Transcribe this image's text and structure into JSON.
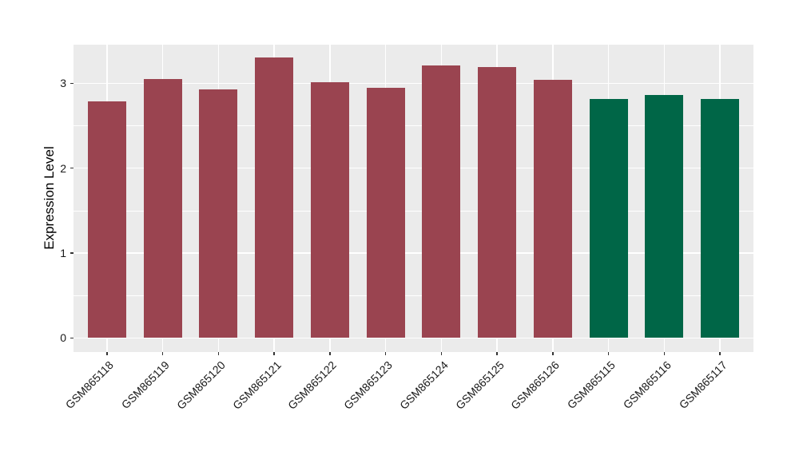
{
  "chart_data": {
    "type": "bar",
    "title": "",
    "xlabel": "",
    "ylabel": "Expression Level",
    "categories": [
      "GSM865118",
      "GSM865119",
      "GSM865120",
      "GSM865121",
      "GSM865122",
      "GSM865123",
      "GSM865124",
      "GSM865125",
      "GSM865126",
      "GSM865115",
      "GSM865116",
      "GSM865117"
    ],
    "values": [
      2.79,
      3.05,
      2.93,
      3.3,
      3.01,
      2.95,
      3.21,
      3.19,
      3.04,
      2.82,
      2.86,
      2.82
    ],
    "bar_colors": [
      "#9A4450",
      "#9A4450",
      "#9A4450",
      "#9A4450",
      "#9A4450",
      "#9A4450",
      "#9A4450",
      "#9A4450",
      "#9A4450",
      "#006647",
      "#006647",
      "#006647"
    ],
    "groups": [
      {
        "name": "group-red",
        "color": "#9A4450",
        "members": [
          "GSM865118",
          "GSM865119",
          "GSM865120",
          "GSM865121",
          "GSM865122",
          "GSM865123",
          "GSM865124",
          "GSM865125",
          "GSM865126"
        ]
      },
      {
        "name": "group-green",
        "color": "#006647",
        "members": [
          "GSM865115",
          "GSM865116",
          "GSM865117"
        ]
      }
    ],
    "yticks": [
      0,
      1,
      2,
      3
    ],
    "yticks_minor": [
      0.5,
      1.5,
      2.5
    ],
    "ylim": [
      -0.165,
      3.455
    ],
    "grid": true,
    "legend": "none",
    "panel_background": "#EBEBEB",
    "gridline_color": "#FFFFFF"
  }
}
